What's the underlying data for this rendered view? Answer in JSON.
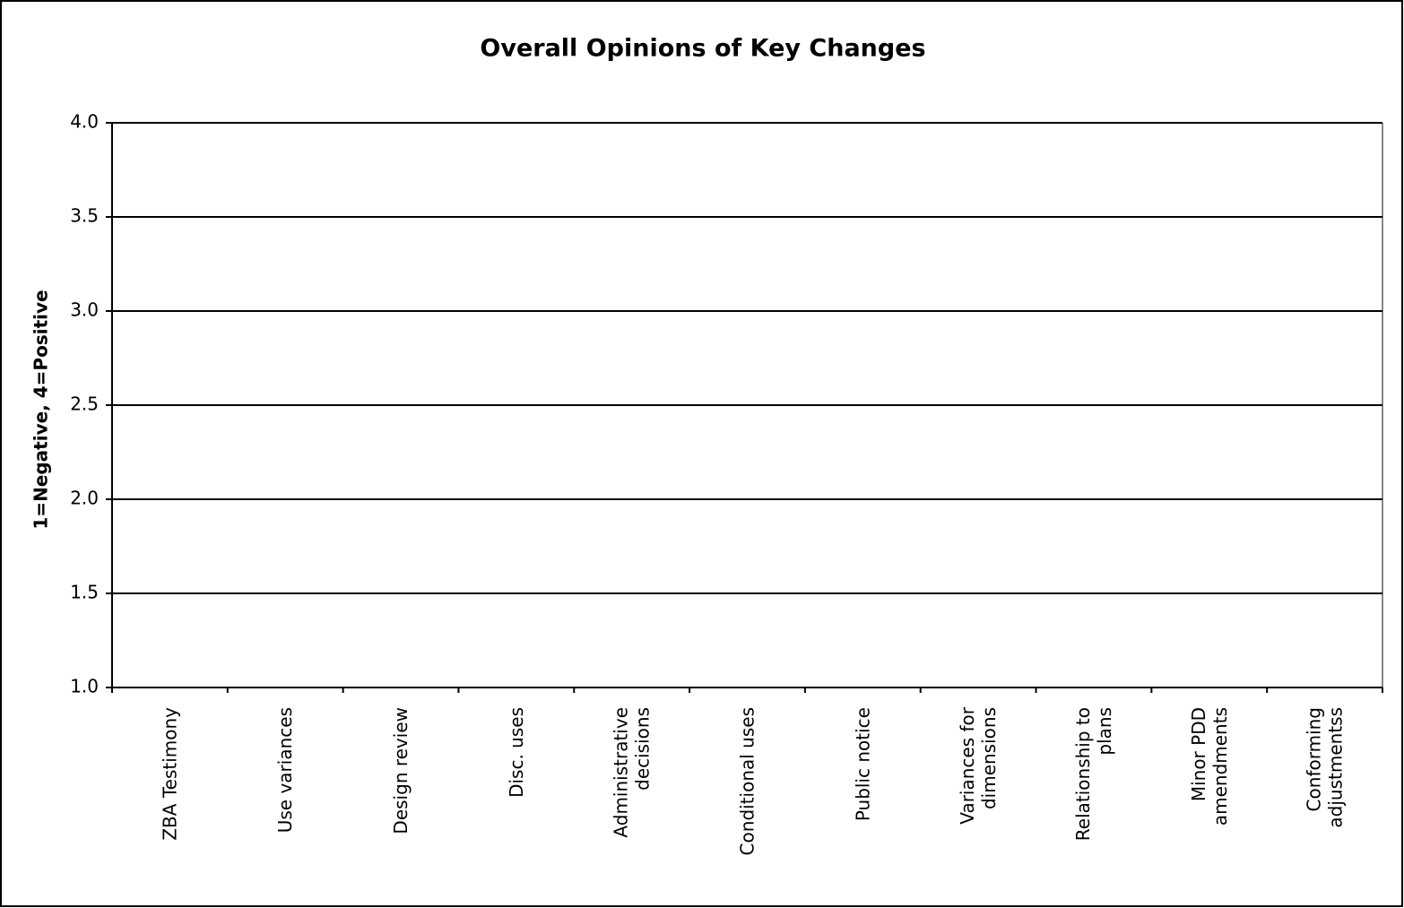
{
  "chart_data": {
    "type": "bar",
    "title": "Overall Opinions of Key Changes",
    "y_label": "1=Negative, 4=Positive",
    "categories": [
      "ZBA Testimony",
      "Use variances",
      "Design review",
      "Disc. uses",
      "Administrative decisions",
      "Conditional uses",
      "Public notice",
      "Variances for dimensions",
      "Relationship to plans",
      "Minor PDD amendments",
      "Conforming adjustmentss"
    ],
    "ylim": [
      1,
      4
    ],
    "yticks": [
      {
        "value": 1,
        "label": "1.0"
      },
      {
        "value": 1.5,
        "label": "1.5"
      },
      {
        "value": 2,
        "label": "2.0"
      },
      {
        "value": 2.5,
        "label": "2.5"
      },
      {
        "value": 3,
        "label": "3.0"
      },
      {
        "value": 3.5,
        "label": "3.5"
      },
      {
        "value": 4,
        "label": "4.0"
      }
    ],
    "grid": true
  }
}
